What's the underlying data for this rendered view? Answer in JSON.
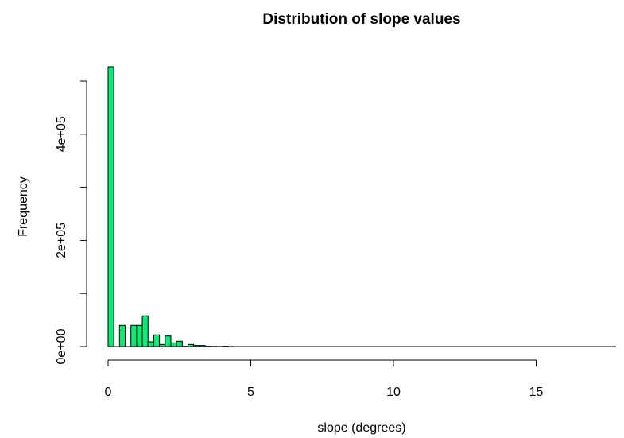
{
  "chart_data": {
    "type": "bar",
    "title": "Distribution of slope values",
    "xlabel": "slope (degrees)",
    "ylabel": "Frequency",
    "xlim": [
      0,
      17.8
    ],
    "ylim": [
      0,
      500000
    ],
    "bin_width": 0.2,
    "x_ticks": [
      0,
      5,
      10,
      15
    ],
    "y_ticks": [
      0,
      100000,
      200000,
      300000,
      400000,
      500000
    ],
    "x_tick_labels": [
      "0",
      "5",
      "10",
      "15"
    ],
    "y_tick_labels": [
      "0e+00",
      "",
      "2e+05",
      "",
      "4e+05",
      ""
    ],
    "bar_color": "#00ee76",
    "bins": [
      {
        "x": 0.0,
        "value": 527000
      },
      {
        "x": 0.2,
        "value": 0
      },
      {
        "x": 0.4,
        "value": 40000
      },
      {
        "x": 0.6,
        "value": 0
      },
      {
        "x": 0.8,
        "value": 40000
      },
      {
        "x": 1.0,
        "value": 40000
      },
      {
        "x": 1.2,
        "value": 58000
      },
      {
        "x": 1.4,
        "value": 9000
      },
      {
        "x": 1.6,
        "value": 22000
      },
      {
        "x": 1.8,
        "value": 4000
      },
      {
        "x": 2.0,
        "value": 20000
      },
      {
        "x": 2.2,
        "value": 7000
      },
      {
        "x": 2.4,
        "value": 10000
      },
      {
        "x": 2.6,
        "value": 500
      },
      {
        "x": 2.8,
        "value": 4000
      },
      {
        "x": 3.0,
        "value": 2000
      },
      {
        "x": 3.2,
        "value": 2000
      },
      {
        "x": 3.4,
        "value": 500
      },
      {
        "x": 3.6,
        "value": 300
      },
      {
        "x": 3.8,
        "value": 200
      },
      {
        "x": 4.0,
        "value": 600
      },
      {
        "x": 4.2,
        "value": 100
      }
    ]
  }
}
